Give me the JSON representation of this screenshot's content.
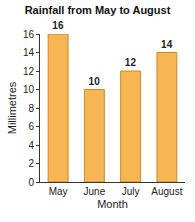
{
  "chart_data": {
    "type": "bar",
    "title": "Rainfall from May to August",
    "x_label": "Month",
    "y_label": "Millimetres",
    "categories": [
      "May",
      "June",
      "July",
      "August"
    ],
    "values": [
      16,
      10,
      12,
      14
    ],
    "color": "#f7b554",
    "ylim": [
      0,
      16
    ],
    "yticks": [
      0,
      2,
      4,
      6,
      8,
      10,
      12,
      14,
      16
    ],
    "grid": false,
    "data_labels": true
  }
}
